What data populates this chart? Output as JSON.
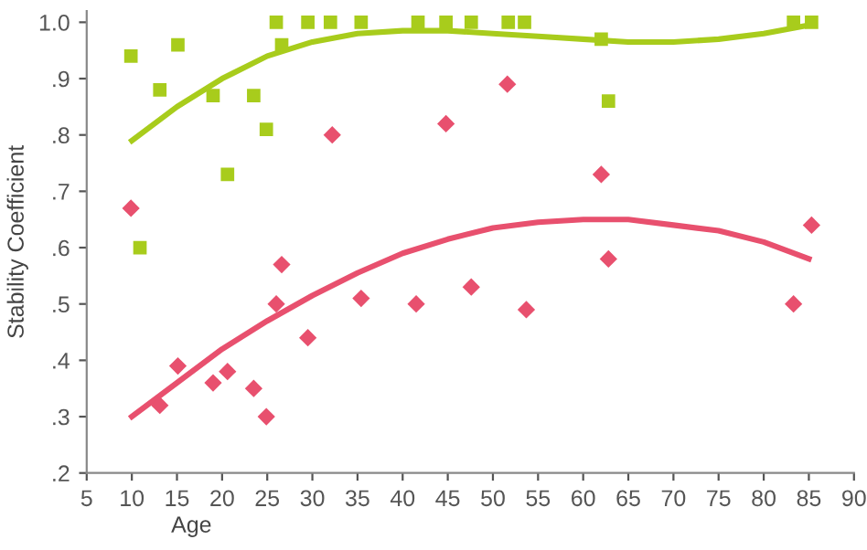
{
  "chart_data": {
    "type": "scatter",
    "xlabel": "Age",
    "ylabel": "Stability Coefficient",
    "xlim": [
      5,
      90
    ],
    "xticks": [
      5,
      10,
      15,
      20,
      25,
      30,
      35,
      40,
      45,
      50,
      55,
      60,
      65,
      70,
      75,
      80,
      85,
      90
    ],
    "ylim": [
      0.2,
      1.02
    ],
    "yticks": [
      {
        "value": 0.2,
        "label": ".2"
      },
      {
        "value": 0.3,
        "label": ".3"
      },
      {
        "value": 0.4,
        "label": ".4"
      },
      {
        "value": 0.5,
        "label": ".5"
      },
      {
        "value": 0.6,
        "label": ".6"
      },
      {
        "value": 0.7,
        "label": ".7"
      },
      {
        "value": 0.8,
        "label": ".8"
      },
      {
        "value": 0.9,
        "label": ".9"
      },
      {
        "value": 1.0,
        "label": "1.0"
      }
    ],
    "grid": false,
    "legend": false,
    "series": [
      {
        "marker": "square",
        "color": "#a8cc1c",
        "x": [
          9.9,
          10.9,
          13.1,
          15.1,
          19,
          20.6,
          23.5,
          24.9,
          26,
          26.6,
          29.5,
          32,
          35.4,
          41.7,
          44.8,
          47.6,
          51.7,
          53.5,
          62,
          62.8,
          83.3,
          85.3
        ],
        "values": [
          0.94,
          0.6,
          0.88,
          0.96,
          0.87,
          0.73,
          0.87,
          0.81,
          1.0,
          0.96,
          1.0,
          1.0,
          1.0,
          1.0,
          1.0,
          1.0,
          1.0,
          1.0,
          0.97,
          0.86,
          1.0,
          1.0
        ]
      },
      {
        "marker": "diamond",
        "color": "#e8506e",
        "x": [
          9.9,
          13.1,
          15.1,
          19,
          20.6,
          23.5,
          24.9,
          26,
          26.6,
          29.5,
          32.2,
          35.4,
          41.5,
          44.8,
          47.6,
          51.6,
          53.7,
          62,
          62.8,
          83.3,
          85.3
        ],
        "values": [
          0.67,
          0.32,
          0.39,
          0.36,
          0.38,
          0.35,
          0.3,
          0.5,
          0.57,
          0.44,
          0.8,
          0.51,
          0.5,
          0.82,
          0.53,
          0.89,
          0.49,
          0.73,
          0.58,
          0.5,
          0.64
        ]
      },
      {
        "type": "line",
        "marker": "none",
        "line_style": "solid",
        "color": "#a8cc1c",
        "x": [
          10,
          15,
          20,
          25,
          30,
          35,
          40,
          45,
          50,
          55,
          60,
          65,
          70,
          75,
          80,
          85
        ],
        "values": [
          0.79,
          0.85,
          0.9,
          0.94,
          0.965,
          0.98,
          0.985,
          0.985,
          0.98,
          0.975,
          0.97,
          0.965,
          0.965,
          0.97,
          0.98,
          0.995
        ]
      },
      {
        "type": "line",
        "marker": "none",
        "line_style": "solid",
        "color": "#e8506e",
        "x": [
          10,
          15,
          20,
          25,
          30,
          35,
          40,
          45,
          50,
          55,
          60,
          65,
          70,
          75,
          80,
          85
        ],
        "values": [
          0.3,
          0.36,
          0.42,
          0.47,
          0.515,
          0.555,
          0.59,
          0.615,
          0.635,
          0.645,
          0.65,
          0.65,
          0.64,
          0.63,
          0.61,
          0.58
        ]
      }
    ]
  }
}
